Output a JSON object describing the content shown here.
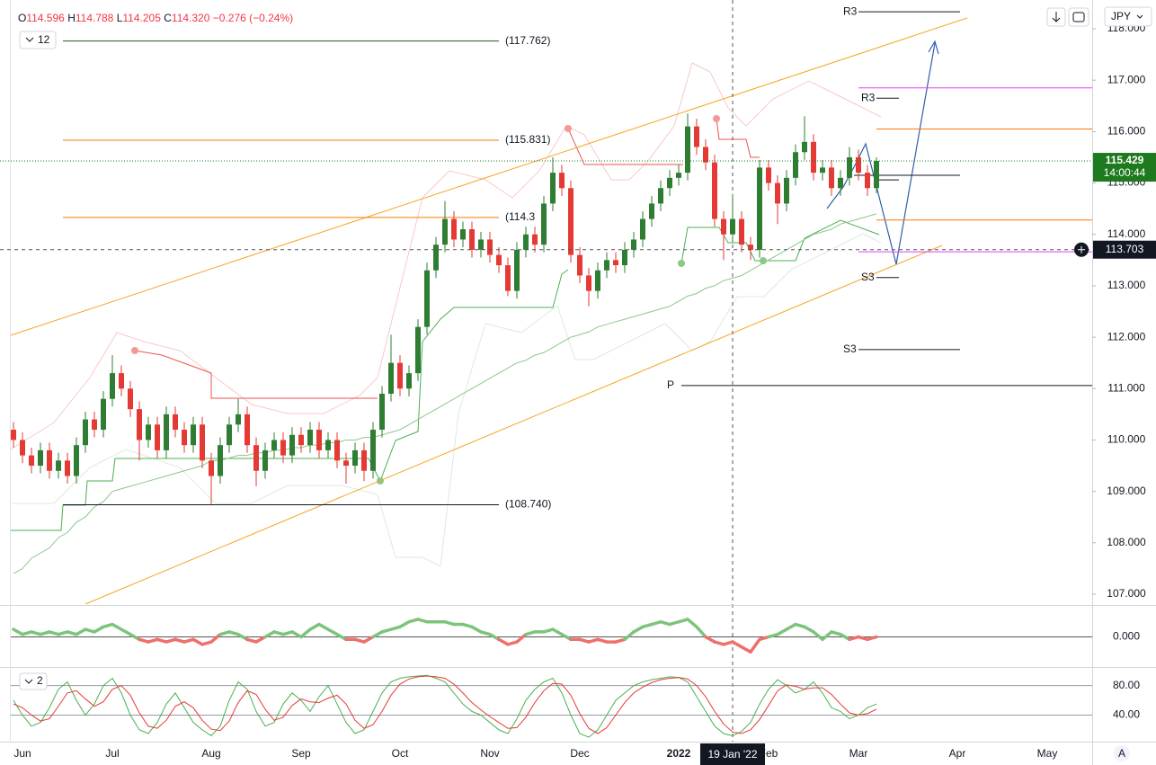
{
  "chart_data": {
    "type": "candlestick",
    "header": {
      "items": [
        {
          "key": "O",
          "value": "114.596"
        },
        {
          "key": "H",
          "value": "114.788"
        },
        {
          "key": "L",
          "value": "114.205"
        },
        {
          "key": "C",
          "value": "114.320"
        }
      ],
      "change": "−0.276 (−0.24%)"
    },
    "interval": "12",
    "currency": "JPY",
    "scale_mode": "A",
    "categories": [
      null,
      "Jun",
      null,
      null,
      null,
      null,
      null,
      null,
      null,
      null,
      null,
      "Jul",
      null,
      null,
      null,
      null,
      null,
      null,
      null,
      null,
      null,
      null,
      "Aug",
      null,
      null,
      null,
      null,
      null,
      null,
      null,
      null,
      null,
      "Sep",
      null,
      null,
      null,
      null,
      null,
      null,
      null,
      null,
      null,
      null,
      "Oct",
      null,
      null,
      null,
      null,
      null,
      null,
      null,
      null,
      null,
      "Nov",
      null,
      null,
      null,
      null,
      null,
      null,
      null,
      null,
      null,
      "Dec",
      null,
      null,
      null,
      null,
      null,
      null,
      null,
      null,
      null,
      null,
      "2022",
      null,
      null,
      null,
      null,
      null,
      null,
      null,
      null,
      null,
      "Feb",
      null,
      null,
      null,
      null,
      null,
      null,
      null,
      null,
      null,
      "Mar",
      null,
      null,
      null,
      null,
      null,
      null,
      null,
      null,
      null,
      null,
      "Apr",
      null,
      null,
      null,
      null,
      null,
      null,
      null,
      null,
      null,
      "May",
      null,
      null,
      null,
      null,
      null
    ],
    "open": [
      110.2,
      110.0,
      109.7,
      109.5,
      109.8,
      109.4,
      109.6,
      109.3,
      109.9,
      110.4,
      110.2,
      110.8,
      111.3,
      111.0,
      110.6,
      110.0,
      110.3,
      109.8,
      110.5,
      110.2,
      109.9,
      110.3,
      109.6,
      109.3,
      109.9,
      110.3,
      110.5,
      109.9,
      109.4,
      109.8,
      110.0,
      109.7,
      110.1,
      109.9,
      110.2,
      109.8,
      110.0,
      109.6,
      109.5,
      109.8,
      109.4,
      110.2,
      110.9,
      111.5,
      111.0,
      111.3,
      112.2,
      113.3,
      113.8,
      114.3,
      113.9,
      114.1,
      113.7,
      113.9,
      113.6,
      113.4,
      112.9,
      113.7,
      114.0,
      113.8,
      114.6,
      115.2,
      114.9,
      113.6,
      113.2,
      112.9,
      113.3,
      113.5,
      113.4,
      113.7,
      113.9,
      114.3,
      114.6,
      114.9,
      115.1,
      115.2,
      116.1,
      115.7,
      115.4,
      114.3,
      114.0,
      114.3,
      113.8,
      113.7,
      115.3,
      115.0,
      114.6,
      115.1,
      115.6,
      115.8,
      115.2,
      115.3,
      114.9,
      115.1,
      115.5,
      115.2,
      114.9,
      null,
      null,
      null,
      null,
      null,
      null,
      null,
      null,
      null,
      null,
      null,
      null,
      null,
      null,
      null,
      null,
      null,
      null,
      null,
      null,
      null,
      null,
      null,
      null
    ],
    "high": [
      110.35,
      110.15,
      109.85,
      109.95,
      109.95,
      109.75,
      109.75,
      110.05,
      110.55,
      110.55,
      110.95,
      111.65,
      111.45,
      111.15,
      110.75,
      110.45,
      110.45,
      110.65,
      110.65,
      110.35,
      110.45,
      110.45,
      109.75,
      110.05,
      110.45,
      110.8,
      110.65,
      110.05,
      109.95,
      110.15,
      110.15,
      110.25,
      110.25,
      110.35,
      110.35,
      110.15,
      110.15,
      109.75,
      109.95,
      109.95,
      110.35,
      111.05,
      112.05,
      111.65,
      111.45,
      112.35,
      113.45,
      113.95,
      114.65,
      114.45,
      114.25,
      114.25,
      114.05,
      114.05,
      113.75,
      113.55,
      113.85,
      114.15,
      114.15,
      114.75,
      115.5,
      115.35,
      115.05,
      113.75,
      113.35,
      113.45,
      113.65,
      113.65,
      113.85,
      114.05,
      114.45,
      114.75,
      115.05,
      115.25,
      115.35,
      116.35,
      116.25,
      115.85,
      115.55,
      114.45,
      114.79,
      114.45,
      113.95,
      115.45,
      115.45,
      115.15,
      115.25,
      115.75,
      116.3,
      115.95,
      115.45,
      115.45,
      115.25,
      115.7,
      115.65,
      115.35,
      115.5,
      null,
      null,
      null,
      null,
      null,
      null,
      null,
      null,
      null,
      null,
      null,
      null,
      null,
      null,
      null,
      null,
      null,
      null,
      null,
      null,
      null,
      null,
      null,
      null
    ],
    "low": [
      109.85,
      109.55,
      109.35,
      109.35,
      109.25,
      109.25,
      109.15,
      109.15,
      109.75,
      110.05,
      110.05,
      110.65,
      110.85,
      110.45,
      109.6,
      109.85,
      109.65,
      109.65,
      110.05,
      109.75,
      109.75,
      109.45,
      108.75,
      109.15,
      109.75,
      110.15,
      109.75,
      109.1,
      109.25,
      109.65,
      109.55,
      109.55,
      109.75,
      109.75,
      109.65,
      109.65,
      109.45,
      109.15,
      109.35,
      109.2,
      109.25,
      110.05,
      110.75,
      110.85,
      110.85,
      111.15,
      112.05,
      113.15,
      113.65,
      113.75,
      113.75,
      113.55,
      113.55,
      113.45,
      113.25,
      112.8,
      112.75,
      113.55,
      113.65,
      113.65,
      114.45,
      114.75,
      113.45,
      113.05,
      112.6,
      112.75,
      113.15,
      113.25,
      113.25,
      113.55,
      113.75,
      114.15,
      114.45,
      114.75,
      114.95,
      115.05,
      115.55,
      115.25,
      114.15,
      113.5,
      113.85,
      113.65,
      113.5,
      113.55,
      114.85,
      114.2,
      114.45,
      114.95,
      115.45,
      115.05,
      115.05,
      114.75,
      114.75,
      114.95,
      115.05,
      114.75,
      114.8,
      null,
      null,
      null,
      null,
      null,
      null,
      null,
      null,
      null,
      null,
      null,
      null,
      null,
      null,
      null,
      null,
      null,
      null,
      null,
      null,
      null,
      null,
      null,
      null
    ],
    "close": [
      110.0,
      109.7,
      109.5,
      109.8,
      109.4,
      109.6,
      109.3,
      109.9,
      110.4,
      110.2,
      110.8,
      111.3,
      111.0,
      110.6,
      110.0,
      110.3,
      109.8,
      110.5,
      110.2,
      109.9,
      110.3,
      109.6,
      109.3,
      109.9,
      110.3,
      110.5,
      109.9,
      109.4,
      109.8,
      110.0,
      109.7,
      110.1,
      109.9,
      110.2,
      109.8,
      110.0,
      109.6,
      109.5,
      109.8,
      109.4,
      110.2,
      110.9,
      111.5,
      111.0,
      111.3,
      112.2,
      113.3,
      113.8,
      114.3,
      113.9,
      114.1,
      113.7,
      113.9,
      113.6,
      113.4,
      112.9,
      113.7,
      114.0,
      113.8,
      114.6,
      115.2,
      114.9,
      113.6,
      113.2,
      112.9,
      113.3,
      113.5,
      113.4,
      113.7,
      113.9,
      114.3,
      114.6,
      114.9,
      115.1,
      115.2,
      116.1,
      115.7,
      115.4,
      114.3,
      114.0,
      114.3,
      113.8,
      113.7,
      115.3,
      115.0,
      114.6,
      115.1,
      115.6,
      115.8,
      115.2,
      115.3,
      114.9,
      115.1,
      115.5,
      115.2,
      114.9,
      115.429,
      null,
      null,
      null,
      null,
      null,
      null,
      null,
      null,
      null,
      null,
      null,
      null,
      null,
      null,
      null,
      null,
      null,
      null,
      null,
      null,
      null,
      null,
      null,
      null
    ],
    "up_color": "#2e7d32",
    "down_color": "#e53935",
    "moving_average": {
      "color": "#8bc88b",
      "values": [
        107.4,
        107.5,
        107.7,
        107.8,
        107.9,
        108.1,
        108.2,
        108.4,
        108.5,
        108.7,
        108.8,
        109.0,
        109.05,
        109.1,
        109.15,
        109.2,
        109.25,
        109.3,
        109.35,
        109.4,
        109.45,
        109.5,
        109.6,
        109.6,
        109.65,
        109.7,
        109.7,
        109.75,
        109.75,
        109.8,
        109.8,
        109.85,
        109.85,
        109.9,
        109.9,
        109.95,
        109.95,
        110.0,
        110.0,
        110.05,
        110.05,
        110.1,
        110.15,
        110.2,
        110.3,
        110.4,
        110.5,
        110.6,
        110.7,
        110.8,
        110.9,
        111.0,
        111.1,
        111.2,
        111.3,
        111.4,
        111.5,
        111.55,
        111.65,
        111.7,
        111.8,
        111.9,
        112.0,
        112.05,
        112.1,
        112.2,
        112.25,
        112.3,
        112.35,
        112.4,
        112.45,
        112.5,
        112.55,
        112.6,
        112.7,
        112.8,
        112.85,
        112.95,
        113.0,
        113.1,
        113.15,
        113.2,
        113.3,
        113.4,
        113.5,
        113.6,
        113.7,
        113.8,
        113.9,
        114.0,
        114.05,
        114.1,
        114.2,
        114.25,
        114.3,
        114.35,
        114.4,
        null,
        null,
        null,
        null,
        null,
        null,
        null,
        null,
        null,
        null,
        null,
        null,
        null,
        null,
        null,
        null,
        null,
        null,
        null,
        null,
        null,
        null,
        null,
        null
      ]
    },
    "ylim": [
      106.79,
      118.56
    ],
    "yticks": [
      {
        "value": 107,
        "label": "107.000"
      },
      {
        "value": 108,
        "label": "108.000"
      },
      {
        "value": 109,
        "label": "109.000"
      },
      {
        "value": 110,
        "label": "110.000"
      },
      {
        "value": 111,
        "label": "111.000"
      },
      {
        "value": 112,
        "label": "112.000"
      },
      {
        "value": 113,
        "label": "113.000"
      },
      {
        "value": 114,
        "label": "114.000"
      },
      {
        "value": 115,
        "label": "115.000"
      },
      {
        "value": 116,
        "label": "116.000"
      },
      {
        "value": 117,
        "label": "117.000"
      },
      {
        "value": 118,
        "label": "118.000"
      }
    ],
    "levels": [
      {
        "value": 117.762,
        "label": "(117.762)",
        "color": "#1b5e20"
      },
      {
        "value": 115.831,
        "label": "(115.831)",
        "color": "#f57c00"
      },
      {
        "value": 114.33,
        "label": "(114.3",
        "color": "#f57c00"
      },
      {
        "value": 108.74,
        "label": "(108.740)",
        "color": "#131722"
      }
    ],
    "pivots": [
      {
        "value": 118.33,
        "label": "R3"
      },
      {
        "value": 116.65,
        "label": "R3"
      },
      {
        "value": 113.16,
        "label": "S3"
      },
      {
        "value": 111.76,
        "label": "S3"
      },
      {
        "value": 111.06,
        "label": "P"
      }
    ],
    "pivot_lines": [
      {
        "value": 116.85,
        "color": "#e040fb"
      },
      {
        "value": 116.05,
        "color": "#f57c00"
      },
      {
        "value": 115.15,
        "color": "#131722"
      },
      {
        "value": 115.06,
        "color": "#131722"
      },
      {
        "value": 114.28,
        "color": "#f57c00"
      },
      {
        "value": 113.66,
        "color": "#e040fb"
      }
    ],
    "last_price": {
      "value": 115.429,
      "label": "115.429",
      "countdown": "14:00:44",
      "color": "#1e7a1e"
    },
    "crosshair": {
      "price": {
        "value": 113.703,
        "label": "113.703"
      },
      "date": "19 Jan '22"
    },
    "oscillator": {
      "type": "line",
      "up_color": "#7cc47c",
      "down_color": "#ef6f6a",
      "ylim": [
        -1.2,
        1.2
      ],
      "yticks": [
        {
          "value": 0,
          "label": "0.000"
        }
      ],
      "values": [
        0.3,
        0.1,
        0.2,
        0.1,
        0.2,
        0.1,
        0.2,
        0.1,
        0.3,
        0.2,
        0.4,
        0.5,
        0.3,
        0.1,
        -0.1,
        -0.2,
        -0.1,
        -0.2,
        -0.1,
        -0.2,
        -0.1,
        -0.3,
        -0.2,
        0.1,
        0.2,
        0.1,
        -0.1,
        -0.2,
        0.0,
        0.2,
        0.1,
        0.2,
        0.0,
        0.3,
        0.5,
        0.3,
        0.1,
        -0.1,
        -0.1,
        -0.2,
        0.0,
        0.2,
        0.3,
        0.4,
        0.6,
        0.7,
        0.6,
        0.6,
        0.6,
        0.5,
        0.5,
        0.4,
        0.2,
        0.1,
        -0.1,
        -0.3,
        -0.2,
        0.1,
        0.2,
        0.2,
        0.3,
        0.1,
        -0.1,
        -0.1,
        -0.2,
        -0.1,
        -0.2,
        -0.2,
        -0.1,
        0.2,
        0.4,
        0.5,
        0.6,
        0.5,
        0.6,
        0.7,
        0.4,
        0.0,
        -0.2,
        -0.3,
        -0.2,
        -0.4,
        -0.6,
        -0.1,
        0.0,
        0.1,
        0.3,
        0.5,
        0.4,
        0.2,
        -0.1,
        0.2,
        0.1,
        -0.1,
        0.0,
        -0.1,
        0.0,
        null,
        null,
        null,
        null,
        null,
        null,
        null,
        null,
        null,
        null,
        null,
        null,
        null,
        null,
        null,
        null,
        null,
        null,
        null,
        null,
        null,
        null,
        null,
        null
      ]
    },
    "stochastic": {
      "type": "line",
      "label": "2",
      "ylim": [
        4,
        104
      ],
      "yticks": [
        {
          "value": 80,
          "label": "80.00"
        },
        {
          "value": 40,
          "label": "40.00"
        }
      ],
      "series": [
        {
          "color": "#4caf50",
          "values": [
            60,
            40,
            25,
            30,
            50,
            75,
            85,
            60,
            40,
            55,
            80,
            90,
            70,
            40,
            20,
            15,
            30,
            55,
            70,
            50,
            30,
            20,
            12,
            25,
            60,
            85,
            75,
            45,
            25,
            30,
            55,
            70,
            60,
            45,
            65,
            80,
            55,
            30,
            15,
            20,
            45,
            70,
            85,
            90,
            92,
            93,
            94,
            90,
            85,
            70,
            55,
            45,
            40,
            30,
            20,
            15,
            35,
            60,
            75,
            85,
            90,
            70,
            40,
            15,
            10,
            20,
            40,
            60,
            70,
            80,
            85,
            88,
            90,
            92,
            91,
            85,
            65,
            45,
            25,
            15,
            12,
            18,
            30,
            55,
            75,
            88,
            80,
            70,
            75,
            85,
            70,
            50,
            45,
            35,
            40,
            50,
            55,
            null,
            null,
            null,
            null,
            null,
            null,
            null,
            null,
            null,
            null,
            null,
            null,
            null,
            null,
            null,
            null,
            null,
            null,
            null,
            null,
            null,
            null,
            null,
            null
          ]
        },
        {
          "color": "#e53935",
          "values": [
            55,
            50,
            40,
            32,
            35,
            52,
            70,
            73,
            62,
            52,
            58,
            75,
            80,
            67,
            43,
            25,
            22,
            33,
            52,
            58,
            50,
            33,
            21,
            19,
            32,
            57,
            73,
            68,
            48,
            33,
            37,
            53,
            62,
            58,
            57,
            63,
            67,
            55,
            33,
            22,
            27,
            45,
            67,
            82,
            89,
            92,
            93,
            92,
            90,
            82,
            70,
            57,
            47,
            38,
            30,
            22,
            23,
            37,
            57,
            73,
            83,
            82,
            67,
            42,
            22,
            15,
            23,
            40,
            57,
            70,
            78,
            84,
            88,
            90,
            91,
            89,
            80,
            65,
            45,
            28,
            17,
            15,
            20,
            34,
            53,
            73,
            81,
            79,
            75,
            77,
            77,
            68,
            55,
            43,
            40,
            42,
            48,
            null,
            null,
            null,
            null,
            null,
            null,
            null,
            null,
            null,
            null,
            null,
            null,
            null,
            null,
            null,
            null,
            null,
            null,
            null,
            null,
            null,
            null,
            null,
            null
          ]
        }
      ]
    }
  }
}
